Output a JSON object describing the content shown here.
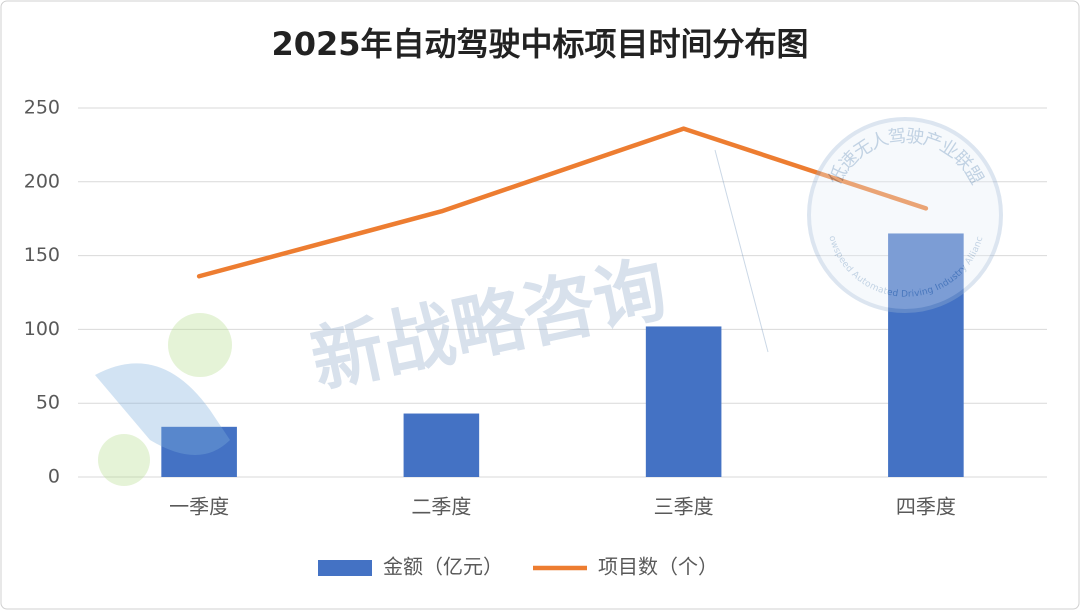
{
  "chart_data": {
    "type": "combo",
    "title": "2025年自动驾驶中标项目时间分布图",
    "categories": [
      "一季度",
      "二季度",
      "三季度",
      "四季度"
    ],
    "series": [
      {
        "name": "金额（亿元）",
        "type": "bar",
        "color": "#4472c4",
        "values": [
          34,
          43,
          102,
          165
        ]
      },
      {
        "name": "项目数（个）",
        "type": "line",
        "color": "#ed7d31",
        "values": [
          136,
          180,
          236,
          182
        ]
      }
    ],
    "ylim": [
      0,
      250
    ],
    "yticks": [
      0,
      50,
      100,
      150,
      200,
      250
    ],
    "grid": true,
    "legend": "bottom",
    "watermarks": [
      "新战略咨询",
      "低速无人驾驶产业联盟",
      "Lowspeed Automated Driving Industry Alliance"
    ]
  }
}
